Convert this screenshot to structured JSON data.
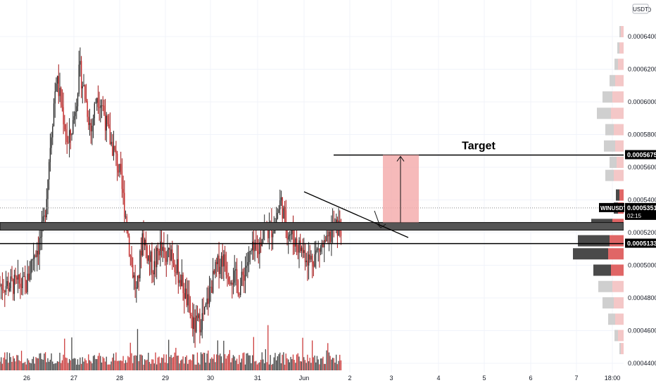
{
  "chart_data": {
    "type": "candlestick",
    "symbol": "WINUSDT",
    "quote_currency": "USDT",
    "y_axis_top_label": "0",
    "countdown": "02:15",
    "last_price": 0.0005351,
    "last_price_label": "0.0005351",
    "target_price": 0.0005675,
    "target_price_label": "0.0005675",
    "support_price": 0.0005133,
    "support_price_label": "0.0005133",
    "support_zone": [
      0.0005215,
      0.0005262
    ],
    "target_label": "Target",
    "y_range": [
      0.00043,
      0.00068
    ],
    "y_ticks": [
      0.00044,
      0.00046,
      0.00048,
      0.0005,
      0.00052,
      0.00054,
      0.00056,
      0.00058,
      0.0006,
      0.00062,
      0.00064
    ],
    "y_tick_labels": [
      "0.0004400",
      "0.0004600",
      "0.0004800",
      "0.0005000",
      "0.0005200",
      "0.0005400",
      "0.0005600",
      "0.0005800",
      "0.0006000",
      "0.0006200",
      "0.0006400"
    ],
    "x_tick_labels": [
      "26",
      "27",
      "28",
      "29",
      "30",
      "31",
      "Jun",
      "2",
      "3",
      "4",
      "5",
      "6",
      "7",
      "18:00"
    ],
    "price_path": [
      [
        "26 00:00",
        0.000488
      ],
      [
        "26 03:00",
        0.000506
      ],
      [
        "26 06:00",
        0.000512
      ],
      [
        "26 09:00",
        0.000527
      ],
      [
        "26 12:00",
        0.000575
      ],
      [
        "26 15:00",
        0.000615
      ],
      [
        "26 18:00",
        0.000596
      ],
      [
        "26 21:00",
        0.000573
      ],
      [
        "27 00:00",
        0.00059
      ],
      [
        "27 03:00",
        0.00062
      ],
      [
        "27 06:00",
        0.000603
      ],
      [
        "27 09:00",
        0.000582
      ],
      [
        "27 12:00",
        0.000605
      ],
      [
        "27 15:00",
        0.000598
      ],
      [
        "27 18:00",
        0.00058
      ],
      [
        "27 21:00",
        0.00057
      ],
      [
        "28 00:00",
        0.000556
      ],
      [
        "28 03:00",
        0.000532
      ],
      [
        "28 06:00",
        0.000502
      ],
      [
        "28 09:00",
        0.000482
      ],
      [
        "28 12:00",
        0.00052
      ],
      [
        "28 15:00",
        0.000505
      ],
      [
        "28 18:00",
        0.000498
      ],
      [
        "28 21:00",
        0.000512
      ],
      [
        "29 00:00",
        0.000502
      ],
      [
        "29 03:00",
        0.00051
      ],
      [
        "29 06:00",
        0.000498
      ],
      [
        "29 09:00",
        0.000488
      ],
      [
        "29 12:00",
        0.000476
      ],
      [
        "29 15:00",
        0.000462
      ],
      [
        "29 18:00",
        0.000465
      ],
      [
        "29 21:00",
        0.00047
      ],
      [
        "30 00:00",
        0.000486
      ],
      [
        "30 03:00",
        0.000498
      ],
      [
        "30 06:00",
        0.000505
      ],
      [
        "30 09:00",
        0.000496
      ],
      [
        "30 12:00",
        0.000493
      ],
      [
        "30 15:00",
        0.000486
      ],
      [
        "30 18:00",
        0.0005
      ],
      [
        "30 21:00",
        0.000508
      ],
      [
        "31 00:00",
        0.000507
      ],
      [
        "31 03:00",
        0.000524
      ],
      [
        "31 06:00",
        0.00052
      ],
      [
        "31 09:00",
        0.000526
      ],
      [
        "31 12:00",
        0.00054
      ],
      [
        "31 15:00",
        0.000522
      ],
      [
        "31 18:00",
        0.000518
      ],
      [
        "31 21:00",
        0.000512
      ],
      [
        "Jun 00:00",
        0.000508
      ],
      [
        "Jun 03:00",
        0.000503
      ],
      [
        "Jun 06:00",
        0.000507
      ],
      [
        "Jun 09:00",
        0.000511
      ],
      [
        "Jun 12:00",
        0.000512
      ],
      [
        "Jun 15:00",
        0.000523
      ]
    ],
    "volume_profile_note": "horizontal volume-by-price histogram at right edge",
    "grid": false
  }
}
